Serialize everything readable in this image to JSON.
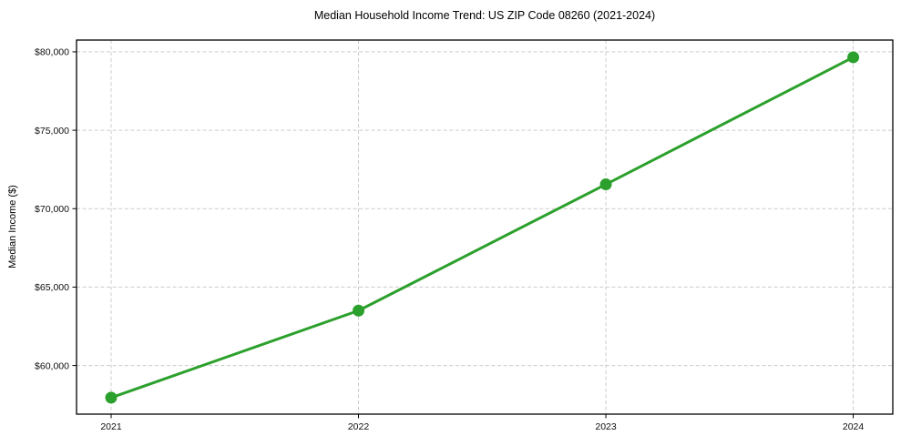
{
  "figure": {
    "background": "#ffffff"
  },
  "chart_data": {
    "type": "line",
    "title": "Median Household Income Trend: US ZIP Code 08260 (2021-2024)",
    "xlabel": "",
    "ylabel": "Median Income ($)",
    "x": [
      2021,
      2022,
      2023,
      2024
    ],
    "x_tick_labels": [
      "2021",
      "2022",
      "2023",
      "2024"
    ],
    "values": [
      57950,
      63500,
      71550,
      79650
    ],
    "y_ticks": [
      60000,
      65000,
      70000,
      75000,
      80000
    ],
    "y_tick_labels": [
      "$60,000",
      "$65,000",
      "$70,000",
      "$75,000",
      "$80,000"
    ],
    "xlim": [
      2020.86,
      2024.16
    ],
    "ylim": [
      56900,
      80750
    ],
    "grid": true,
    "grid_style": "dashed",
    "grid_color": "#cccccc",
    "legend": false,
    "line_color": "#2ca02c",
    "marker": "circle",
    "background": "#ffffff"
  }
}
